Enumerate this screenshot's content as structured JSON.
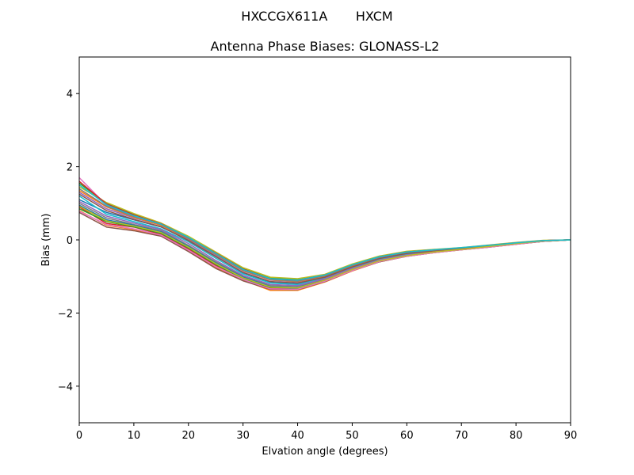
{
  "chart_data": {
    "type": "line",
    "suptitle": "HXCCGX611A       HXCM",
    "title": "Antenna Phase Biases: GLONASS-L2",
    "xlabel": "Elvation angle (degrees)",
    "ylabel": "Bias (mm)",
    "xlim": [
      0,
      90
    ],
    "ylim": [
      -5,
      5
    ],
    "xticks": [
      0,
      10,
      20,
      30,
      40,
      50,
      60,
      70,
      80,
      90
    ],
    "yticks": [
      -4,
      -2,
      0,
      2,
      4
    ],
    "grid": false,
    "legend": "none",
    "x": [
      0,
      5,
      10,
      15,
      20,
      25,
      30,
      35,
      40,
      45,
      50,
      55,
      60,
      65,
      70,
      75,
      80,
      85,
      90
    ],
    "series": [
      {
        "color": "#1f77b4",
        "values": [
          1.1,
          0.75,
          0.55,
          0.35,
          0.0,
          -0.45,
          -0.9,
          -1.15,
          -1.2,
          -1.05,
          -0.78,
          -0.55,
          -0.4,
          -0.32,
          -0.25,
          -0.18,
          -0.1,
          -0.03,
          0.0
        ]
      },
      {
        "color": "#ff7f0e",
        "values": [
          0.8,
          0.4,
          0.28,
          0.12,
          -0.3,
          -0.75,
          -1.1,
          -1.38,
          -1.38,
          -1.15,
          -0.85,
          -0.6,
          -0.45,
          -0.35,
          -0.27,
          -0.2,
          -0.12,
          -0.04,
          0.0
        ]
      },
      {
        "color": "#2ca02c",
        "values": [
          1.55,
          1.0,
          0.7,
          0.45,
          0.08,
          -0.35,
          -0.78,
          -1.03,
          -1.08,
          -0.95,
          -0.68,
          -0.45,
          -0.32,
          -0.27,
          -0.22,
          -0.15,
          -0.08,
          -0.02,
          0.0
        ]
      },
      {
        "color": "#d62728",
        "values": [
          0.9,
          0.45,
          0.35,
          0.15,
          -0.25,
          -0.7,
          -1.05,
          -1.32,
          -1.33,
          -1.12,
          -0.82,
          -0.58,
          -0.44,
          -0.34,
          -0.26,
          -0.19,
          -0.11,
          -0.04,
          0.0
        ]
      },
      {
        "color": "#9467bd",
        "values": [
          1.3,
          0.85,
          0.6,
          0.4,
          0.02,
          -0.42,
          -0.85,
          -1.1,
          -1.15,
          -1.0,
          -0.72,
          -0.5,
          -0.36,
          -0.29,
          -0.23,
          -0.16,
          -0.09,
          -0.02,
          0.0
        ]
      },
      {
        "color": "#8c564b",
        "values": [
          0.75,
          0.35,
          0.25,
          0.1,
          -0.32,
          -0.78,
          -1.12,
          -1.35,
          -1.36,
          -1.14,
          -0.84,
          -0.6,
          -0.45,
          -0.35,
          -0.27,
          -0.2,
          -0.12,
          -0.04,
          0.0
        ]
      },
      {
        "color": "#e377c2",
        "values": [
          1.7,
          0.95,
          0.65,
          0.42,
          0.05,
          -0.38,
          -0.82,
          -1.08,
          -1.12,
          -0.98,
          -0.7,
          -0.48,
          -0.34,
          -0.28,
          -0.22,
          -0.15,
          -0.08,
          -0.02,
          0.0
        ]
      },
      {
        "color": "#7f7f7f",
        "values": [
          1.0,
          0.6,
          0.42,
          0.25,
          -0.15,
          -0.6,
          -1.0,
          -1.25,
          -1.28,
          -1.08,
          -0.8,
          -0.56,
          -0.42,
          -0.33,
          -0.25,
          -0.18,
          -0.1,
          -0.03,
          0.0
        ]
      },
      {
        "color": "#bcbd22",
        "values": [
          1.45,
          1.02,
          0.72,
          0.46,
          0.1,
          -0.33,
          -0.76,
          -1.02,
          -1.06,
          -0.94,
          -0.66,
          -0.44,
          -0.31,
          -0.26,
          -0.21,
          -0.14,
          -0.07,
          -0.01,
          0.0
        ]
      },
      {
        "color": "#17becf",
        "values": [
          1.2,
          0.7,
          0.5,
          0.3,
          -0.05,
          -0.5,
          -0.93,
          -1.18,
          -1.22,
          -1.04,
          -0.76,
          -0.53,
          -0.39,
          -0.31,
          -0.24,
          -0.17,
          -0.09,
          -0.03,
          0.0
        ]
      },
      {
        "color": "#1f77b4",
        "values": [
          0.95,
          0.55,
          0.4,
          0.22,
          -0.18,
          -0.63,
          -1.02,
          -1.28,
          -1.3,
          -1.1,
          -0.8,
          -0.57,
          -0.43,
          -0.33,
          -0.25,
          -0.18,
          -0.1,
          -0.03,
          0.0
        ]
      },
      {
        "color": "#ff7f0e",
        "values": [
          1.35,
          0.9,
          0.62,
          0.4,
          0.03,
          -0.4,
          -0.84,
          -1.09,
          -1.14,
          -0.99,
          -0.71,
          -0.49,
          -0.35,
          -0.28,
          -0.22,
          -0.16,
          -0.08,
          -0.02,
          0.0
        ]
      },
      {
        "color": "#2ca02c",
        "values": [
          0.85,
          0.5,
          0.36,
          0.18,
          -0.22,
          -0.67,
          -1.06,
          -1.3,
          -1.32,
          -1.11,
          -0.82,
          -0.58,
          -0.44,
          -0.34,
          -0.26,
          -0.19,
          -0.11,
          -0.04,
          0.0
        ]
      },
      {
        "color": "#d62728",
        "values": [
          1.6,
          0.98,
          0.68,
          0.44,
          0.06,
          -0.36,
          -0.8,
          -1.06,
          -1.1,
          -0.96,
          -0.69,
          -0.46,
          -0.33,
          -0.27,
          -0.22,
          -0.15,
          -0.08,
          -0.02,
          0.0
        ]
      },
      {
        "color": "#9467bd",
        "values": [
          1.05,
          0.65,
          0.46,
          0.28,
          -0.1,
          -0.56,
          -0.97,
          -1.22,
          -1.25,
          -1.06,
          -0.78,
          -0.55,
          -0.41,
          -0.32,
          -0.25,
          -0.18,
          -0.1,
          -0.03,
          0.0
        ]
      },
      {
        "color": "#8c564b",
        "values": [
          1.25,
          0.8,
          0.56,
          0.36,
          -0.02,
          -0.46,
          -0.89,
          -1.14,
          -1.18,
          -1.02,
          -0.74,
          -0.51,
          -0.37,
          -0.3,
          -0.23,
          -0.16,
          -0.09,
          -0.02,
          0.0
        ]
      },
      {
        "color": "#e377c2",
        "values": [
          0.78,
          0.42,
          0.3,
          0.13,
          -0.28,
          -0.73,
          -1.08,
          -1.34,
          -1.35,
          -1.13,
          -0.84,
          -0.59,
          -0.45,
          -0.35,
          -0.27,
          -0.2,
          -0.12,
          -0.04,
          0.0
        ]
      },
      {
        "color": "#7f7f7f",
        "values": [
          1.4,
          0.92,
          0.64,
          0.42,
          0.04,
          -0.39,
          -0.83,
          -1.08,
          -1.13,
          -0.98,
          -0.7,
          -0.48,
          -0.34,
          -0.28,
          -0.22,
          -0.15,
          -0.08,
          -0.02,
          0.0
        ]
      },
      {
        "color": "#bcbd22",
        "values": [
          0.92,
          0.52,
          0.38,
          0.2,
          -0.2,
          -0.65,
          -1.04,
          -1.29,
          -1.31,
          -1.1,
          -0.81,
          -0.57,
          -0.43,
          -0.33,
          -0.26,
          -0.18,
          -0.1,
          -0.03,
          0.0
        ]
      },
      {
        "color": "#17becf",
        "values": [
          1.5,
          0.96,
          0.66,
          0.43,
          0.07,
          -0.37,
          -0.81,
          -1.06,
          -1.1,
          -0.96,
          -0.68,
          -0.46,
          -0.33,
          -0.27,
          -0.21,
          -0.15,
          -0.08,
          -0.02,
          0.0
        ]
      }
    ]
  }
}
